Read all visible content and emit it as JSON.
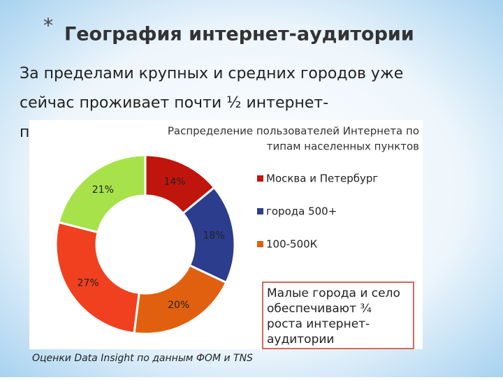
{
  "slide": {
    "bullet": "*",
    "title": "География интернет-аудитории",
    "body_lines": [
      "За пределами крупных и средних городов уже",
      "сейчас проживает почти ½ интернет-",
      "пользователей"
    ],
    "callout_lines": [
      "Малые города и село",
      "обеспечивают ¾",
      "роста интернет-",
      "аудитории"
    ],
    "footnote": "Оценки Data Insight по данным ФОМ и TNS"
  },
  "chart_data": {
    "type": "donut",
    "title_lines": [
      "Распределение пользователей Интернета по",
      "типам населенных пунктов"
    ],
    "categories": [
      "Москва и Петербург",
      "города 500+",
      "100-500К",
      null,
      null
    ],
    "values": [
      14,
      18,
      20,
      27,
      21
    ],
    "value_labels": [
      "14%",
      "18%",
      "20%",
      "27%",
      "21%"
    ],
    "colors": [
      "#c0150c",
      "#2b3d8c",
      "#e0600f",
      "#f0401f",
      "#a8e24a"
    ]
  }
}
